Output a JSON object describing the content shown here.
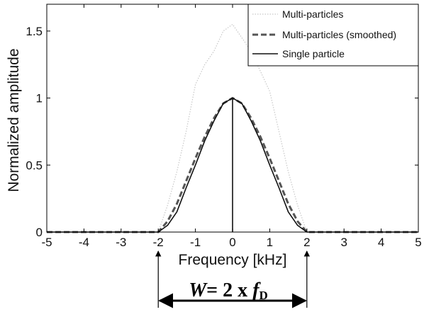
{
  "chart_data": {
    "type": "line",
    "xlabel": "Frequency [kHz]",
    "ylabel": "Normalized amplitude",
    "xlim": [
      -5,
      5
    ],
    "ylim": [
      0,
      1.7
    ],
    "xticks": [
      "-5",
      "-4",
      "-3",
      "-2",
      "-1",
      "0",
      "1",
      "2",
      "3",
      "4",
      "5"
    ],
    "yticks": [
      "0",
      "0.5",
      "1",
      "1.5"
    ],
    "x": [
      -5,
      -2.5,
      -2.0,
      -1.75,
      -1.5,
      -1.25,
      -1.0,
      -0.75,
      -0.5,
      -0.25,
      0.0,
      0.25,
      0.5,
      0.75,
      1.0,
      1.25,
      1.5,
      1.75,
      2.0,
      2.5,
      5
    ],
    "series": [
      {
        "name": "Multi-particles",
        "style": "dotted",
        "color": "#c8c8c8",
        "values": [
          0,
          0,
          0,
          0.2,
          0.45,
          0.75,
          1.1,
          1.25,
          1.35,
          1.5,
          1.55,
          1.45,
          1.35,
          1.2,
          1.05,
          0.75,
          0.45,
          0.2,
          0,
          0,
          0
        ]
      },
      {
        "name": "Multi-particles (smoothed)",
        "style": "dashed",
        "color": "#555555",
        "values": [
          0,
          0,
          0,
          0.08,
          0.21,
          0.38,
          0.55,
          0.71,
          0.85,
          0.96,
          1.0,
          0.96,
          0.85,
          0.71,
          0.55,
          0.38,
          0.21,
          0.08,
          0,
          0,
          0
        ]
      },
      {
        "name": "Single particle",
        "style": "solid",
        "color": "#111111",
        "values": [
          0,
          0,
          0,
          0.05,
          0.15,
          0.33,
          0.5,
          0.68,
          0.83,
          0.96,
          1.0,
          0.96,
          0.83,
          0.68,
          0.5,
          0.33,
          0.15,
          0.05,
          0,
          0,
          0
        ]
      }
    ],
    "center_line": {
      "x": 0,
      "y": 1.0
    },
    "legend_position": "top-right",
    "annotation": {
      "marker_x": [
        -2,
        2
      ],
      "lhs": "W",
      "rhs": "= 2 x ",
      "symbol": "f",
      "subscript": "D"
    }
  },
  "colors": {
    "multi": "#c8c8c8",
    "smoothed": "#555555",
    "single": "#111111",
    "axis": "#000000"
  }
}
